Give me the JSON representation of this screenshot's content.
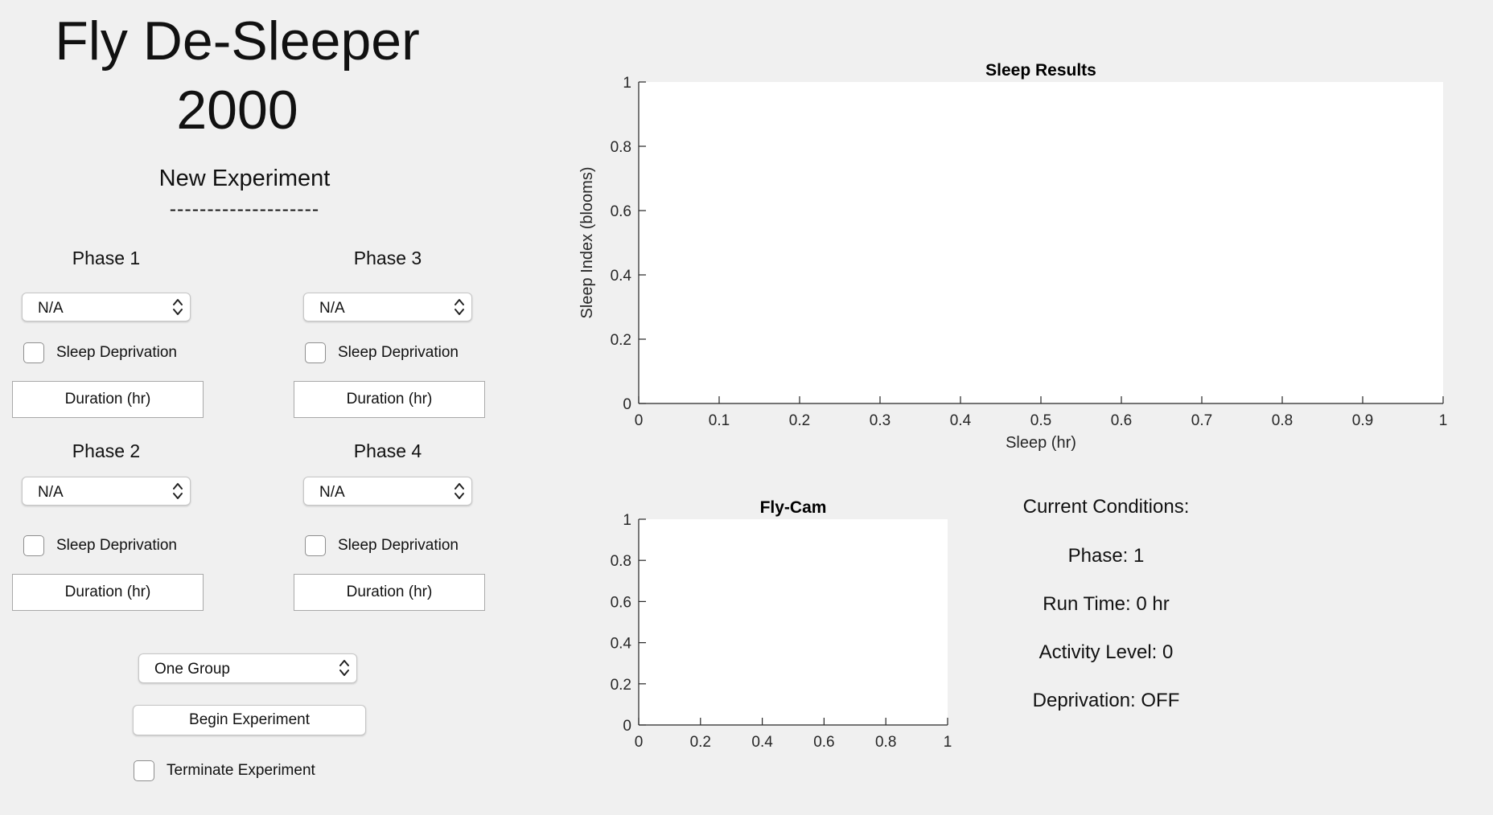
{
  "app": {
    "title_line1": "Fly De-Sleeper",
    "title_line2": "2000"
  },
  "experiment": {
    "section_title": "New Experiment",
    "section_rule": "--------------------"
  },
  "phases": [
    {
      "label": "Phase 1",
      "select_value": "N/A",
      "sleep_deprivation_label": "Sleep Deprivation",
      "sleep_deprivation_checked": false,
      "duration_placeholder": "Duration (hr)"
    },
    {
      "label": "Phase 2",
      "select_value": "N/A",
      "sleep_deprivation_label": "Sleep Deprivation",
      "sleep_deprivation_checked": false,
      "duration_placeholder": "Duration (hr)"
    },
    {
      "label": "Phase 3",
      "select_value": "N/A",
      "sleep_deprivation_label": "Sleep Deprivation",
      "sleep_deprivation_checked": false,
      "duration_placeholder": "Duration (hr)"
    },
    {
      "label": "Phase 4",
      "select_value": "N/A",
      "sleep_deprivation_label": "Sleep Deprivation",
      "sleep_deprivation_checked": false,
      "duration_placeholder": "Duration (hr)"
    }
  ],
  "controls": {
    "group_select_value": "One Group",
    "begin_button_label": "Begin Experiment",
    "terminate_label": "Terminate Experiment",
    "terminate_checked": false
  },
  "conditions": {
    "heading": "Current Conditions:",
    "phase": "Phase: 1",
    "run_time": "Run Time: 0 hr",
    "activity_level": "Activity Level: 0",
    "deprivation": "Deprivation: OFF"
  },
  "chart_data": [
    {
      "type": "line",
      "title": "Sleep Results",
      "xlabel": "Sleep (hr)",
      "ylabel": "Sleep Index (blooms)",
      "xlim": [
        0,
        1
      ],
      "ylim": [
        0,
        1
      ],
      "xticks": [
        "0",
        "0.1",
        "0.2",
        "0.3",
        "0.4",
        "0.5",
        "0.6",
        "0.7",
        "0.8",
        "0.9",
        "1"
      ],
      "yticks": [
        "0",
        "0.2",
        "0.4",
        "0.6",
        "0.8",
        "1"
      ],
      "series": [],
      "grid": false
    },
    {
      "type": "line",
      "title": "Fly-Cam",
      "xlabel": "",
      "ylabel": "",
      "xlim": [
        0,
        1
      ],
      "ylim": [
        0,
        1
      ],
      "xticks": [
        "0",
        "0.2",
        "0.4",
        "0.6",
        "0.8",
        "1"
      ],
      "yticks": [
        "0",
        "0.2",
        "0.4",
        "0.6",
        "0.8",
        "1"
      ],
      "series": [],
      "grid": false
    }
  ]
}
